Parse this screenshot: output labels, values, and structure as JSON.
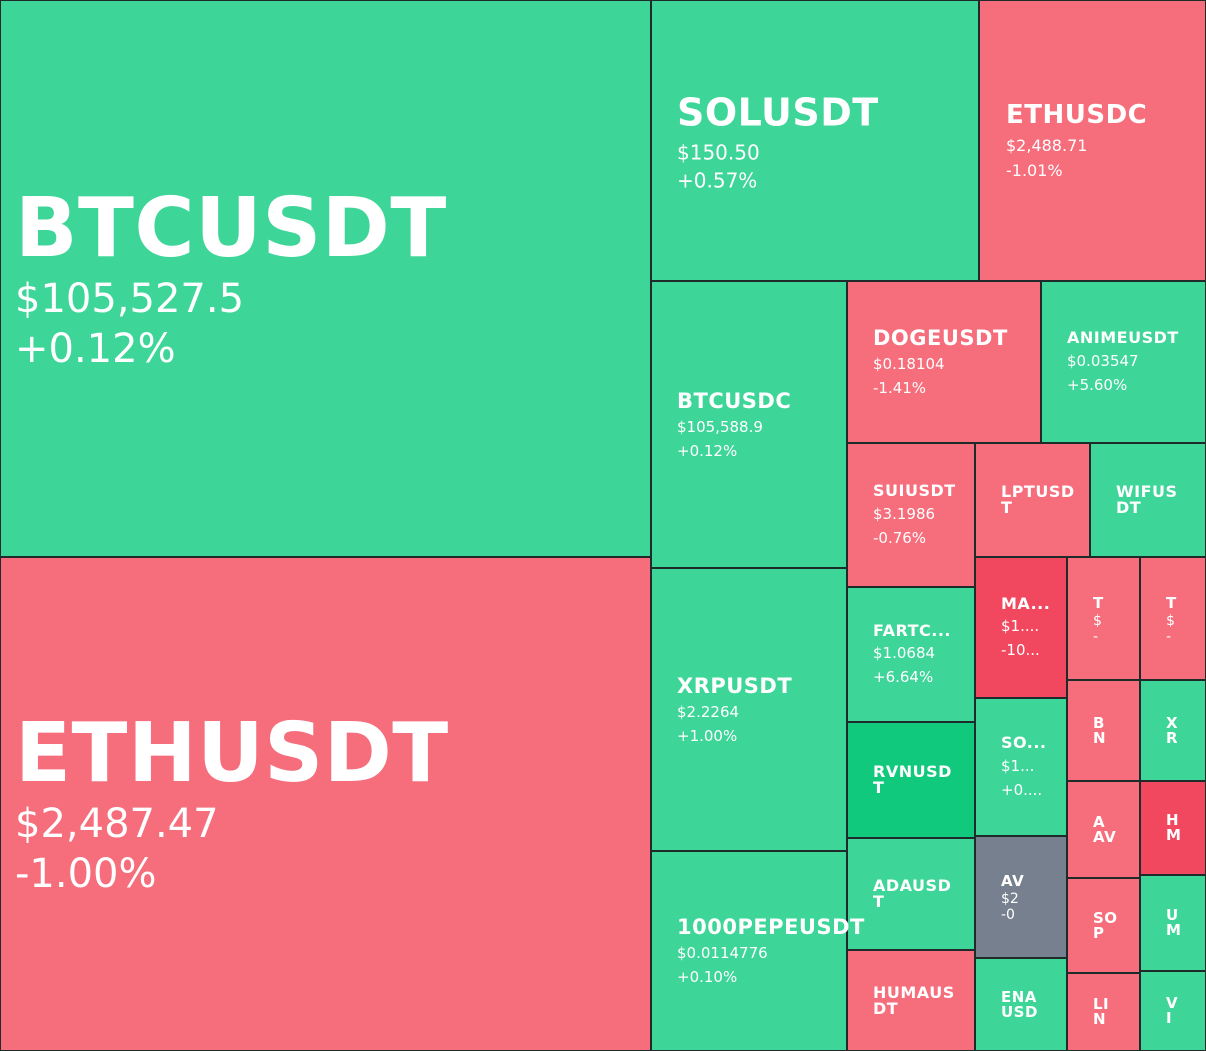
{
  "colors": {
    "up": "#3ed598",
    "down": "#f66d7c",
    "strong_down": "#f2485f",
    "strong_up": "#10c97c",
    "neutral": "#76808e"
  },
  "tiles": [
    {
      "symbol": "BTCUSDT",
      "price": "$105,527.5",
      "change": "+0.12%",
      "trend": "up"
    },
    {
      "symbol": "ETHUSDT",
      "price": "$2,487.47",
      "change": "-1.00%",
      "trend": "down"
    },
    {
      "symbol": "SOLUSDT",
      "price": "$150.50",
      "change": "+0.57%",
      "trend": "up"
    },
    {
      "symbol": "ETHUSDC",
      "price": "$2,488.71",
      "change": "-1.01%",
      "trend": "down"
    },
    {
      "symbol": "BTCUSDC",
      "price": "$105,588.9",
      "change": "+0.12%",
      "trend": "up"
    },
    {
      "symbol": "DOGEUSDT",
      "price": "$0.18104",
      "change": "-1.41%",
      "trend": "down"
    },
    {
      "symbol": "ANIMEUSDT",
      "price": "$0.03547",
      "change": "+5.60%",
      "trend": "up"
    },
    {
      "symbol": "SUIUSDT",
      "price": "$3.1986",
      "change": "-0.76%",
      "trend": "down"
    },
    {
      "symbol": "LPTUSD\nT",
      "price": "",
      "change": "",
      "trend": "down"
    },
    {
      "symbol": "WIFUS\nDT",
      "price": "",
      "change": "",
      "trend": "up"
    },
    {
      "symbol": "MA...",
      "price": "$1....",
      "change": "-10...",
      "trend": "strong_down"
    },
    {
      "symbol": "T",
      "price": "$",
      "change": "-",
      "trend": "down"
    },
    {
      "symbol": "T",
      "price": "$",
      "change": "-",
      "trend": "down"
    },
    {
      "symbol": "XRPUSDT",
      "price": "$2.2264",
      "change": "+1.00%",
      "trend": "up"
    },
    {
      "symbol": "FARTC...",
      "price": "$1.0684",
      "change": "+6.64%",
      "trend": "up"
    },
    {
      "symbol": "B\nN",
      "price": "",
      "change": "",
      "trend": "down"
    },
    {
      "symbol": "X\nR",
      "price": "",
      "change": "",
      "trend": "up"
    },
    {
      "symbol": "SO...",
      "price": "$1...",
      "change": "+0....",
      "trend": "up"
    },
    {
      "symbol": "RVNUSD\nT",
      "price": "",
      "change": "",
      "trend": "strong_up"
    },
    {
      "symbol": "A\nAV",
      "price": "",
      "change": "",
      "trend": "down"
    },
    {
      "symbol": "H\nM",
      "price": "",
      "change": "",
      "trend": "strong_down"
    },
    {
      "symbol": "AV",
      "price": "$2",
      "change": "-0",
      "trend": "neutral"
    },
    {
      "symbol": "ADAUSD\nT",
      "price": "",
      "change": "",
      "trend": "up"
    },
    {
      "symbol": "SO\nP",
      "price": "",
      "change": "",
      "trend": "down"
    },
    {
      "symbol": "U\nM",
      "price": "",
      "change": "",
      "trend": "up"
    },
    {
      "symbol": "1000PEPEUSDT",
      "price": "$0.0114776",
      "change": "+0.10%",
      "trend": "up"
    },
    {
      "symbol": "HUMAUS\nDT",
      "price": "",
      "change": "",
      "trend": "down"
    },
    {
      "symbol": "ENA\nUSD",
      "price": "",
      "change": "",
      "trend": "up"
    },
    {
      "symbol": "LI\nN",
      "price": "",
      "change": "",
      "trend": "down"
    },
    {
      "symbol": "V\nI",
      "price": "",
      "change": "",
      "trend": "up"
    }
  ],
  "chart_data": {
    "type": "heatmap",
    "items": [
      {
        "symbol": "BTCUSDT",
        "price": 105527.5,
        "change_pct": 0.12
      },
      {
        "symbol": "ETHUSDT",
        "price": 2487.47,
        "change_pct": -1.0
      },
      {
        "symbol": "SOLUSDT",
        "price": 150.5,
        "change_pct": 0.57
      },
      {
        "symbol": "ETHUSDC",
        "price": 2488.71,
        "change_pct": -1.01
      },
      {
        "symbol": "BTCUSDC",
        "price": 105588.9,
        "change_pct": 0.12
      },
      {
        "symbol": "DOGEUSDT",
        "price": 0.18104,
        "change_pct": -1.41
      },
      {
        "symbol": "ANIMEUSDT",
        "price": 0.03547,
        "change_pct": 5.6
      },
      {
        "symbol": "SUIUSDT",
        "price": 3.1986,
        "change_pct": -0.76
      },
      {
        "symbol": "XRPUSDT",
        "price": 2.2264,
        "change_pct": 1.0
      },
      {
        "symbol": "1000PEPEUSDT",
        "price": 0.0114776,
        "change_pct": 0.1
      },
      {
        "symbol": "FARTC...",
        "price": 1.0684,
        "change_pct": 6.64
      }
    ]
  }
}
